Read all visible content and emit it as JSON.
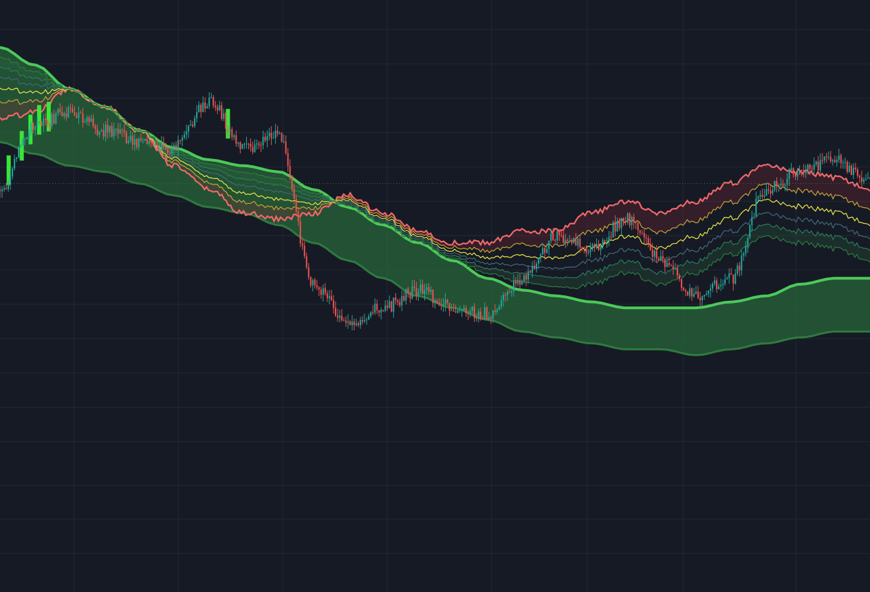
{
  "theme": {
    "background": "#161a25",
    "grid": "#232837",
    "up_candle": "#26a69a",
    "down_candle": "#ef5350",
    "signal_color": "#39e639",
    "band_fill": "#2a6e3c",
    "band_line": "#4cc95a",
    "band_lower_line": "#2f7a3e",
    "envelope_colors": [
      "#f0686a",
      "#c9a33a",
      "#e8e84a",
      "#3f6a7a",
      "#2d7a5a",
      "#2f7a3e"
    ],
    "last_price_line": "#2f7a3e"
  },
  "chart_data": {
    "type": "line",
    "title": "",
    "xlabel": "",
    "ylabel": "",
    "grid": true,
    "legend": "none",
    "axis_labels_visible": false,
    "x_range": [
      0,
      100
    ],
    "y_range": [
      0,
      100
    ],
    "x": [
      0,
      4,
      8,
      12,
      16,
      20,
      24,
      28,
      32,
      36,
      40,
      44,
      48,
      52,
      56,
      60,
      64,
      68,
      72,
      76,
      80,
      84,
      88,
      92,
      96,
      100
    ],
    "series": [
      {
        "name": "",
        "role": "price",
        "values": [
          68,
          79,
          81,
          78,
          76,
          75,
          83,
          75,
          77,
          52,
          45,
          48,
          51,
          48,
          47,
          53,
          60,
          58,
          63,
          56,
          50,
          53,
          68,
          71,
          73,
          69
        ]
      },
      {
        "name": "",
        "role": "upper-envelope",
        "values": [
          80,
          81,
          85,
          82,
          78,
          72,
          68,
          64,
          63,
          64,
          67,
          64,
          61,
          59,
          59,
          61,
          61,
          64,
          66,
          64,
          66,
          69,
          72,
          71,
          70,
          68
        ]
      },
      {
        "name": "",
        "role": "band-upper",
        "values": [
          92,
          89,
          85,
          82,
          78,
          75,
          73,
          72,
          71,
          68,
          65,
          62,
          59,
          56,
          53,
          51,
          50,
          49,
          48,
          48,
          48,
          49,
          50,
          52,
          53,
          53
        ]
      },
      {
        "name": "",
        "role": "band-lower",
        "values": [
          76,
          74,
          72,
          71,
          69,
          67,
          65,
          64,
          62,
          59,
          56,
          53,
          50,
          48,
          46,
          44,
          43,
          42,
          41,
          41,
          40,
          41,
          42,
          43,
          44,
          44
        ]
      }
    ]
  }
}
